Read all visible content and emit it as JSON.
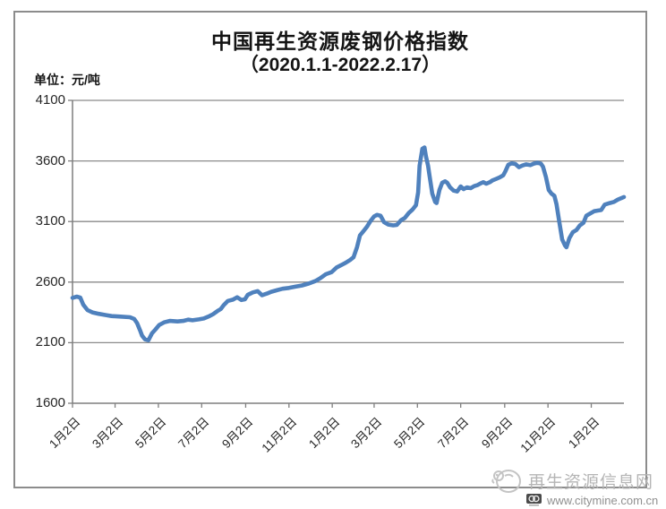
{
  "title": {
    "line1": "中国再生资源废钢价格指数",
    "line2": "（2020.1.1-2022.2.17）"
  },
  "unit_label": "单位：元/吨",
  "watermark": {
    "site_name": "再生资源信息网",
    "site_url": "www.citymine.com.cn"
  },
  "colors": {
    "line": "#4F81BD",
    "grid": "#8a8a8a",
    "axis": "#7f7f7f",
    "axis_text": "#262626",
    "frame": "#8c8c8c",
    "watermark_text": "#b5b5b5",
    "url_text": "#909090"
  },
  "chart_data": {
    "type": "line",
    "title": "中国再生资源废钢价格指数（2020.1.1-2022.2.17）",
    "ylabel": "元/吨",
    "ylim": [
      1600,
      4100
    ],
    "y_ticks": [
      1600,
      2100,
      2600,
      3100,
      3600,
      4100
    ],
    "grid": "horizontal",
    "legend": "none",
    "x_start_date": "2020-01-02",
    "x_end_date": "2022-02-17",
    "x_range_days": [
      0,
      777
    ],
    "x_tick_days": [
      0,
      60,
      121,
      182,
      244,
      305,
      366,
      425,
      486,
      547,
      609,
      670,
      731
    ],
    "x_tick_labels": [
      "1月2日",
      "3月2日",
      "5月2日",
      "7月2日",
      "9月2日",
      "11月2日",
      "1月2日",
      "3月2日",
      "5月2日",
      "7月2日",
      "9月2日",
      "11月2日",
      "1月2日"
    ],
    "series": [
      {
        "name": "废钢价格指数",
        "points": [
          [
            0,
            2470
          ],
          [
            6,
            2480
          ],
          [
            11,
            2472
          ],
          [
            15,
            2415
          ],
          [
            21,
            2370
          ],
          [
            28,
            2350
          ],
          [
            37,
            2338
          ],
          [
            47,
            2328
          ],
          [
            55,
            2320
          ],
          [
            68,
            2315
          ],
          [
            81,
            2310
          ],
          [
            87,
            2295
          ],
          [
            91,
            2262
          ],
          [
            95,
            2205
          ],
          [
            98,
            2158
          ],
          [
            102,
            2128
          ],
          [
            107,
            2120
          ],
          [
            112,
            2178
          ],
          [
            117,
            2210
          ],
          [
            122,
            2245
          ],
          [
            129,
            2268
          ],
          [
            137,
            2280
          ],
          [
            148,
            2275
          ],
          [
            156,
            2280
          ],
          [
            163,
            2290
          ],
          [
            169,
            2285
          ],
          [
            178,
            2292
          ],
          [
            185,
            2300
          ],
          [
            193,
            2320
          ],
          [
            198,
            2335
          ],
          [
            204,
            2360
          ],
          [
            209,
            2378
          ],
          [
            213,
            2410
          ],
          [
            219,
            2445
          ],
          [
            226,
            2455
          ],
          [
            232,
            2475
          ],
          [
            238,
            2452
          ],
          [
            243,
            2458
          ],
          [
            247,
            2495
          ],
          [
            254,
            2515
          ],
          [
            261,
            2525
          ],
          [
            267,
            2492
          ],
          [
            274,
            2505
          ],
          [
            280,
            2520
          ],
          [
            289,
            2535
          ],
          [
            296,
            2545
          ],
          [
            305,
            2552
          ],
          [
            314,
            2562
          ],
          [
            323,
            2572
          ],
          [
            333,
            2588
          ],
          [
            342,
            2608
          ],
          [
            349,
            2632
          ],
          [
            357,
            2665
          ],
          [
            365,
            2682
          ],
          [
            372,
            2720
          ],
          [
            378,
            2738
          ],
          [
            385,
            2760
          ],
          [
            391,
            2782
          ],
          [
            396,
            2805
          ],
          [
            401,
            2890
          ],
          [
            405,
            2985
          ],
          [
            410,
            3020
          ],
          [
            415,
            3058
          ],
          [
            420,
            3105
          ],
          [
            425,
            3142
          ],
          [
            429,
            3155
          ],
          [
            434,
            3148
          ],
          [
            439,
            3095
          ],
          [
            445,
            3075
          ],
          [
            452,
            3068
          ],
          [
            457,
            3072
          ],
          [
            463,
            3112
          ],
          [
            468,
            3128
          ],
          [
            474,
            3172
          ],
          [
            479,
            3198
          ],
          [
            484,
            3235
          ],
          [
            487,
            3340
          ],
          [
            489,
            3560
          ],
          [
            493,
            3700
          ],
          [
            496,
            3712
          ],
          [
            498,
            3640
          ],
          [
            501,
            3560
          ],
          [
            503,
            3480
          ],
          [
            507,
            3330
          ],
          [
            511,
            3262
          ],
          [
            513,
            3252
          ],
          [
            517,
            3360
          ],
          [
            521,
            3420
          ],
          [
            525,
            3432
          ],
          [
            528,
            3420
          ],
          [
            532,
            3382
          ],
          [
            537,
            3355
          ],
          [
            542,
            3348
          ],
          [
            547,
            3390
          ],
          [
            551,
            3368
          ],
          [
            556,
            3382
          ],
          [
            561,
            3375
          ],
          [
            566,
            3392
          ],
          [
            571,
            3402
          ],
          [
            575,
            3415
          ],
          [
            579,
            3425
          ],
          [
            583,
            3412
          ],
          [
            588,
            3425
          ],
          [
            592,
            3440
          ],
          [
            597,
            3452
          ],
          [
            602,
            3465
          ],
          [
            607,
            3482
          ],
          [
            610,
            3515
          ],
          [
            614,
            3568
          ],
          [
            619,
            3580
          ],
          [
            624,
            3575
          ],
          [
            629,
            3548
          ],
          [
            634,
            3562
          ],
          [
            639,
            3572
          ],
          [
            645,
            3565
          ],
          [
            650,
            3578
          ],
          [
            655,
            3585
          ],
          [
            660,
            3578
          ],
          [
            663,
            3552
          ],
          [
            667,
            3470
          ],
          [
            671,
            3360
          ],
          [
            675,
            3330
          ],
          [
            679,
            3312
          ],
          [
            682,
            3242
          ],
          [
            686,
            3092
          ],
          [
            690,
            2952
          ],
          [
            694,
            2902
          ],
          [
            696,
            2888
          ],
          [
            700,
            2962
          ],
          [
            705,
            3012
          ],
          [
            710,
            3030
          ],
          [
            715,
            3068
          ],
          [
            720,
            3090
          ],
          [
            724,
            3148
          ],
          [
            730,
            3168
          ],
          [
            735,
            3185
          ],
          [
            740,
            3190
          ],
          [
            745,
            3195
          ],
          [
            750,
            3240
          ],
          [
            757,
            3252
          ],
          [
            763,
            3262
          ],
          [
            768,
            3280
          ],
          [
            773,
            3292
          ],
          [
            777,
            3302
          ]
        ]
      }
    ]
  }
}
